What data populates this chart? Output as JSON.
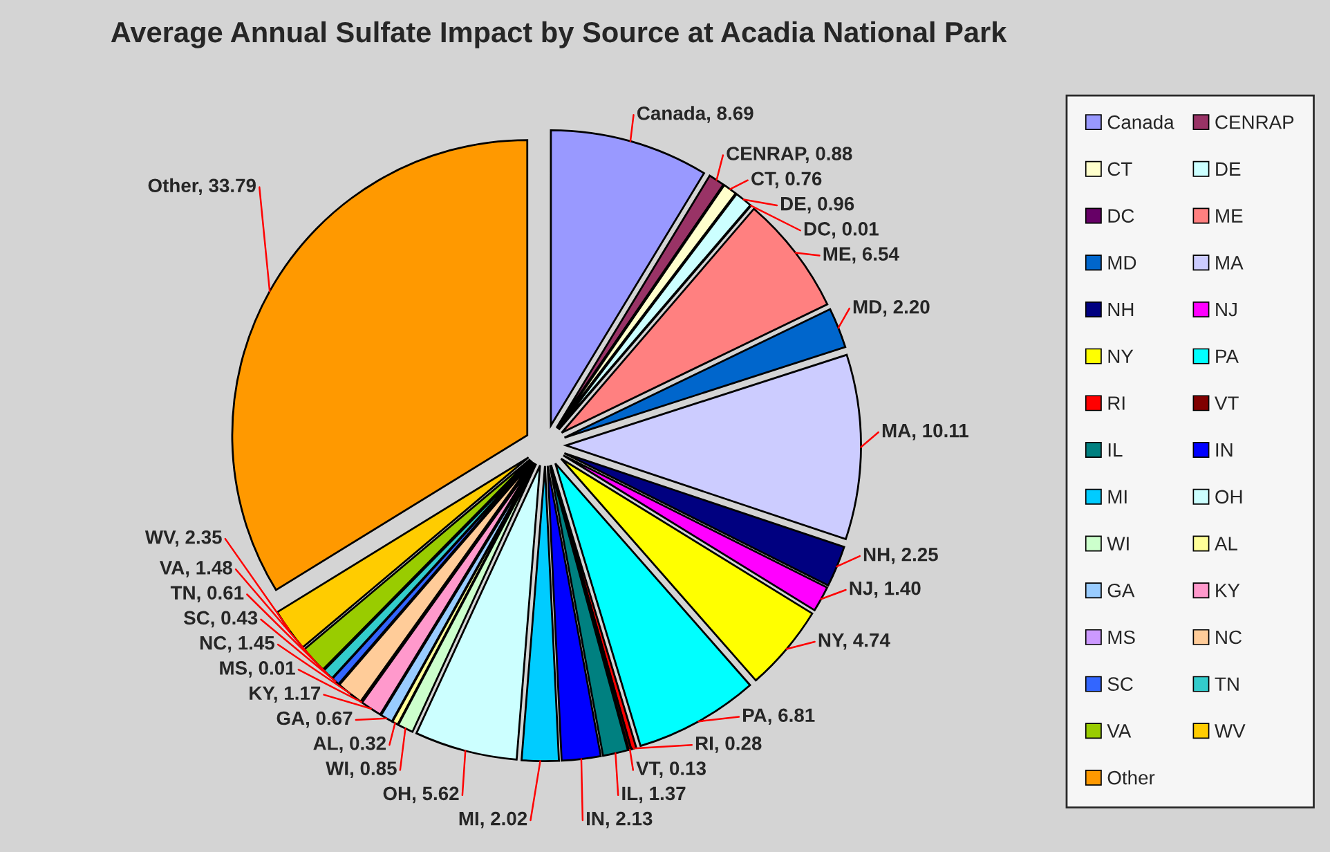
{
  "chart_data": {
    "type": "pie",
    "title": "Average Annual Sulfate Impact by Source at Acadia National Park",
    "categories": [
      "Canada",
      "CENRAP",
      "CT",
      "DE",
      "DC",
      "ME",
      "MD",
      "MA",
      "NH",
      "NJ",
      "NY",
      "PA",
      "RI",
      "VT",
      "IL",
      "IN",
      "MI",
      "OH",
      "WI",
      "AL",
      "GA",
      "KY",
      "MS",
      "NC",
      "SC",
      "TN",
      "VA",
      "WV",
      "Other"
    ],
    "values": [
      8.69,
      0.88,
      0.76,
      0.96,
      0.01,
      6.54,
      2.2,
      10.11,
      2.25,
      1.4,
      4.74,
      6.81,
      0.28,
      0.13,
      1.37,
      2.13,
      2.02,
      5.62,
      0.85,
      0.32,
      0.67,
      1.17,
      0.01,
      1.45,
      0.43,
      0.61,
      1.48,
      2.35,
      33.79
    ],
    "value_labels": [
      "Canada, 8.69",
      "CENRAP, 0.88",
      "CT, 0.76",
      "DE, 0.96",
      "DC, 0.01",
      "ME, 6.54",
      "MD, 2.20",
      "MA, 10.11",
      "NH, 2.25",
      "NJ, 1.40",
      "NY, 4.74",
      "PA, 6.81",
      "RI, 0.28",
      "VT, 0.13",
      "IL, 1.37",
      "IN, 2.13",
      "MI, 2.02",
      "OH, 5.62",
      "WI, 0.85",
      "AL, 0.32",
      "GA, 0.67",
      "KY, 1.17",
      "MS, 0.01",
      "NC, 1.45",
      "SC, 0.43",
      "TN, 0.61",
      "VA, 1.48",
      "WV, 2.35",
      "Other, 33.79"
    ],
    "colors": [
      "#9999ff",
      "#993366",
      "#ffffcc",
      "#ccffff",
      "#660066",
      "#ff8080",
      "#0066cc",
      "#ccccff",
      "#000080",
      "#ff00ff",
      "#ffff00",
      "#00ffff",
      "#ff0000",
      "#800000",
      "#008080",
      "#0000ff",
      "#00ccff",
      "#ccffff",
      "#ccffcc",
      "#ffff99",
      "#99ccff",
      "#ff99cc",
      "#cc99ff",
      "#ffcc99",
      "#3366ff",
      "#33cccc",
      "#99cc00",
      "#ffcc00",
      "#ff9900"
    ],
    "legend": "right"
  }
}
